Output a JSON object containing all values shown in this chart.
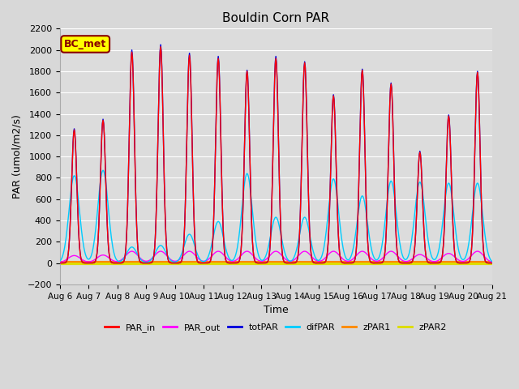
{
  "title": "Bouldin Corn PAR",
  "xlabel": "Time",
  "ylabel": "PAR (umol/m2/s)",
  "ylim": [
    -200,
    2200
  ],
  "yticks": [
    -200,
    0,
    200,
    400,
    600,
    800,
    1000,
    1200,
    1400,
    1600,
    1800,
    2000,
    2200
  ],
  "n_days": 15,
  "x_tick_labels": [
    "Aug 6",
    "Aug 7",
    "Aug 8",
    "Aug 9",
    "Aug 10",
    "Aug 11",
    "Aug 12",
    "Aug 13",
    "Aug 14",
    "Aug 15",
    "Aug 16",
    "Aug 17",
    "Aug 18",
    "Aug 19",
    "Aug 20",
    "Aug 21"
  ],
  "fig_bg": "#d8d8d8",
  "axes_bg": "#dcdcdc",
  "grid_color": "#ffffff",
  "colors": {
    "PAR_in": "#ff0000",
    "PAR_out": "#ff00ff",
    "totPAR": "#0000dd",
    "difPAR": "#00ccff",
    "zPAR1": "#ff8800",
    "zPAR2": "#dddd00"
  },
  "bc_met_label": "BC_met",
  "bc_met_bg": "#ffff00",
  "bc_met_border": "#880000",
  "totPAR_peaks": [
    1260,
    1350,
    2000,
    2050,
    1970,
    1940,
    1810,
    1940,
    1890,
    1580,
    1820,
    1690,
    1050,
    1390,
    1800
  ],
  "PAR_in_peaks": [
    1250,
    1340,
    1980,
    2030,
    1950,
    1920,
    1800,
    1920,
    1880,
    1570,
    1810,
    1680,
    1040,
    1380,
    1790
  ],
  "difPAR_peaks": [
    820,
    870,
    150,
    165,
    270,
    390,
    840,
    430,
    430,
    790,
    630,
    770,
    760,
    750,
    750
  ],
  "PAR_out_peaks": [
    70,
    75,
    110,
    110,
    110,
    110,
    110,
    110,
    110,
    110,
    110,
    110,
    80,
    90,
    110
  ],
  "spike_sigma": 0.09,
  "difpar_sigma": 0.18,
  "parout_sigma": 0.22,
  "zPAR1_value": 15,
  "zPAR2_value": 0
}
